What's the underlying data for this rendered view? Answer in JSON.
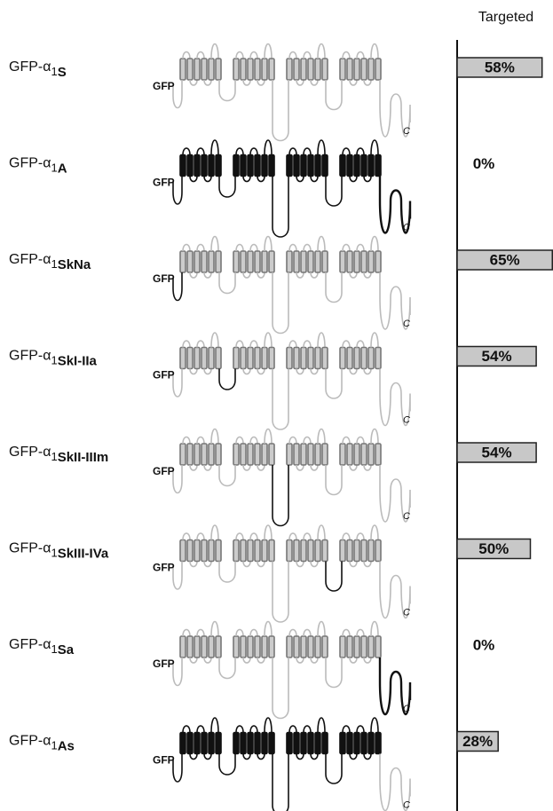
{
  "chart_data": {
    "type": "bar",
    "orientation": "horizontal",
    "header": "Targeted",
    "label_prefix": "GFP-α",
    "label_subscript": "1",
    "categories": [
      "S",
      "A",
      "SkNa",
      "SkI-IIa",
      "SkII-IIIm",
      "SkIII-IVa",
      "Sa",
      "As"
    ],
    "values": [
      58,
      0,
      65,
      54,
      54,
      50,
      0,
      28
    ],
    "value_labels": [
      "58%",
      "0%",
      "65%",
      "54%",
      "54%",
      "50%",
      "0%",
      "28%"
    ],
    "color": "#c8c8c8",
    "n_terminus_label": "GFP",
    "c_terminus_label": "C"
  }
}
